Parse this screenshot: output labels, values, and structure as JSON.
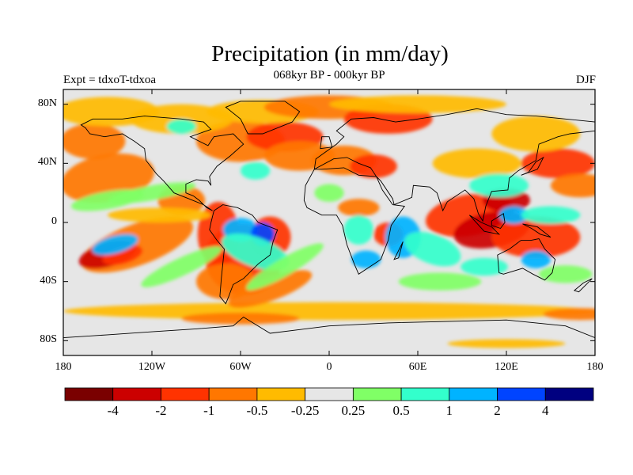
{
  "figure": {
    "title": "Precipitation (in mm/day)",
    "subtitle": "068kyr BP - 000kyr BP",
    "left_label": "Expt = tdxoT-tdxoa",
    "right_label": "DJF"
  },
  "axes": {
    "lat_ticks": [
      {
        "label": "80N",
        "value": 80
      },
      {
        "label": "40N",
        "value": 40
      },
      {
        "label": "0",
        "value": 0
      },
      {
        "label": "40S",
        "value": -40
      },
      {
        "label": "80S",
        "value": -80
      }
    ],
    "lon_ticks": [
      {
        "label": "180",
        "value": -180
      },
      {
        "label": "120W",
        "value": -120
      },
      {
        "label": "60W",
        "value": -60
      },
      {
        "label": "0",
        "value": 0
      },
      {
        "label": "60E",
        "value": 60
      },
      {
        "label": "120E",
        "value": 120
      },
      {
        "label": "180",
        "value": 180
      }
    ],
    "lon_range": [
      -180,
      180
    ],
    "lat_range": [
      -90,
      90
    ]
  },
  "colorbar": {
    "colors": [
      "#7a0000",
      "#cc0000",
      "#ff3300",
      "#ff7700",
      "#ffbb00",
      "#e6e6e6",
      "#80ff66",
      "#33ffcc",
      "#00b3ff",
      "#0044ff",
      "#000080"
    ],
    "labels": [
      "-4",
      "-2",
      "-1",
      "-0.5",
      "-0.25",
      "0.25",
      "0.5",
      "1",
      "2",
      "4"
    ]
  },
  "map": {
    "background_color": "#e6e6e6",
    "coastline_color": "#000000"
  }
}
